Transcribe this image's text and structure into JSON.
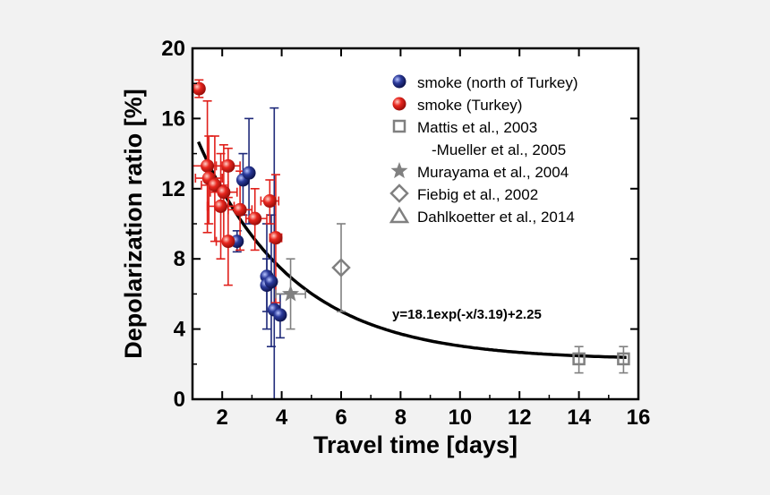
{
  "chart_data": {
    "type": "scatter",
    "title": "",
    "xlabel": "Travel time [days]",
    "ylabel": "Depolarization ratio [%]",
    "xlim": [
      1,
      16
    ],
    "ylim": [
      0,
      20
    ],
    "xticks": [
      2,
      4,
      6,
      8,
      10,
      12,
      14,
      16
    ],
    "yticks": [
      0,
      4,
      8,
      12,
      16,
      20
    ],
    "grid": false,
    "legend_position": "top-right",
    "colors": {
      "north": "#1f2a7a",
      "turkey": "#e0201b",
      "literature": "#808080",
      "fit": "#000000"
    },
    "series": [
      {
        "name": "smoke (north of Turkey)",
        "marker": "sphere",
        "color": "#1f2a7a",
        "points": [
          {
            "x": 2.5,
            "y": 9.0,
            "ylow": 8.4,
            "yhigh": 9.6
          },
          {
            "x": 2.7,
            "y": 12.5,
            "ylow": 10.5,
            "yhigh": 14.0
          },
          {
            "x": 2.9,
            "y": 12.9,
            "ylow": 10.0,
            "yhigh": 16.0
          },
          {
            "x": 3.5,
            "y": 7.0,
            "ylow": 4.0,
            "yhigh": 10.0
          },
          {
            "x": 3.5,
            "y": 6.5,
            "ylow": 5.0,
            "yhigh": 8.0
          },
          {
            "x": 3.65,
            "y": 6.7,
            "ylow": 3.0,
            "yhigh": 10.5
          },
          {
            "x": 3.75,
            "y": 5.1,
            "ylow": 0.0,
            "yhigh": 16.6
          },
          {
            "x": 3.95,
            "y": 4.8,
            "ylow": 3.5,
            "yhigh": 6.0
          }
        ]
      },
      {
        "name": "smoke (Turkey)",
        "marker": "sphere",
        "color": "#e0201b",
        "points": [
          {
            "x": 1.22,
            "y": 17.7,
            "ylow": 17.2,
            "yhigh": 18.2,
            "xlow": 1.1,
            "xhigh": 1.35
          },
          {
            "x": 1.5,
            "y": 13.3,
            "ylow": 9.5,
            "yhigh": 17.0,
            "xlow": 1.0,
            "xhigh": 2.0
          },
          {
            "x": 1.55,
            "y": 12.6,
            "ylow": 10.0,
            "yhigh": 15.0,
            "xlow": 1.1,
            "xhigh": 2.0
          },
          {
            "x": 1.75,
            "y": 12.2,
            "ylow": 9.0,
            "yhigh": 15.0,
            "xlow": 1.3,
            "xhigh": 2.2
          },
          {
            "x": 1.95,
            "y": 11.0,
            "ylow": 8.0,
            "yhigh": 14.0,
            "xlow": 1.5,
            "xhigh": 2.4
          },
          {
            "x": 2.05,
            "y": 11.8,
            "ylow": 9.0,
            "yhigh": 14.5,
            "xlow": 1.6,
            "xhigh": 2.5
          },
          {
            "x": 2.2,
            "y": 13.3,
            "ylow": 11.0,
            "yhigh": 14.3,
            "xlow": 1.8,
            "xhigh": 2.6
          },
          {
            "x": 2.2,
            "y": 9.0,
            "ylow": 6.5,
            "yhigh": 11.5,
            "xlow": 1.8,
            "xhigh": 2.6
          },
          {
            "x": 2.6,
            "y": 10.8,
            "ylow": 8.5,
            "yhigh": 13.0,
            "xlow": 2.2,
            "xhigh": 3.0
          },
          {
            "x": 3.1,
            "y": 10.3,
            "ylow": 8.5,
            "yhigh": 12.0,
            "xlow": 2.8,
            "xhigh": 3.5
          },
          {
            "x": 3.6,
            "y": 11.3,
            "ylow": 10.0,
            "yhigh": 12.5,
            "xlow": 3.3,
            "xhigh": 3.9
          },
          {
            "x": 3.8,
            "y": 9.2,
            "ylow": 5.5,
            "yhigh": 12.8,
            "xlow": 3.6,
            "xhigh": 4.0
          }
        ]
      },
      {
        "name": "Mattis et al., 2003",
        "name_line2": "-Mueller et al., 2005",
        "marker": "square",
        "color": "#808080",
        "points": [
          {
            "x": 14.0,
            "y": 2.3,
            "ylow": 1.5,
            "yhigh": 3.0
          },
          {
            "x": 15.5,
            "y": 2.3,
            "ylow": 1.5,
            "yhigh": 3.0
          }
        ]
      },
      {
        "name": "Murayama et al., 2004",
        "marker": "star",
        "color": "#808080",
        "points": [
          {
            "x": 4.3,
            "y": 6.0,
            "ylow": 4.0,
            "yhigh": 8.0,
            "xlow": 3.8,
            "xhigh": 4.8
          }
        ]
      },
      {
        "name": "Fiebig et al., 2002",
        "marker": "diamond",
        "color": "#808080",
        "points": [
          {
            "x": 6.0,
            "y": 7.5,
            "ylow": 5.0,
            "yhigh": 10.0
          }
        ]
      },
      {
        "name": "Dahlkoetter et al., 2014",
        "marker": "triangle",
        "color": "#808080",
        "points": []
      }
    ],
    "fit": {
      "label": "y=18.1exp(-x/3.19)+2.25",
      "a": 18.1,
      "tau": 3.19,
      "c": 2.25,
      "xrange": [
        1.2,
        15.6
      ]
    }
  }
}
